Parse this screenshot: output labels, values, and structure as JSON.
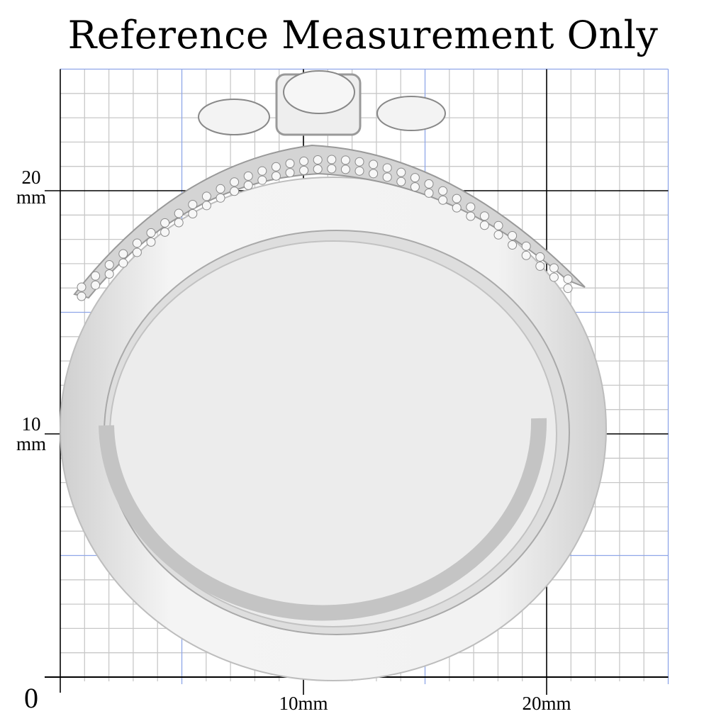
{
  "title": "Reference Measurement Only",
  "scale": {
    "origin_label": "0",
    "x_labels": [
      "10mm",
      "20mm"
    ],
    "y_labels": [
      {
        "value": "20",
        "unit": "mm"
      },
      {
        "value": "10",
        "unit": "mm"
      }
    ],
    "x_range_mm": [
      0,
      25
    ],
    "y_range_mm": [
      0,
      25
    ],
    "minor_step_mm": 1,
    "blue_step_mm": 5,
    "major_step_mm": 10
  },
  "colors": {
    "minor_grid": "#c8c8c8",
    "blue_grid": "#8fa6e8",
    "major_grid": "#000000",
    "ring": "#e6e6e6"
  },
  "product": "ring-set-photo"
}
